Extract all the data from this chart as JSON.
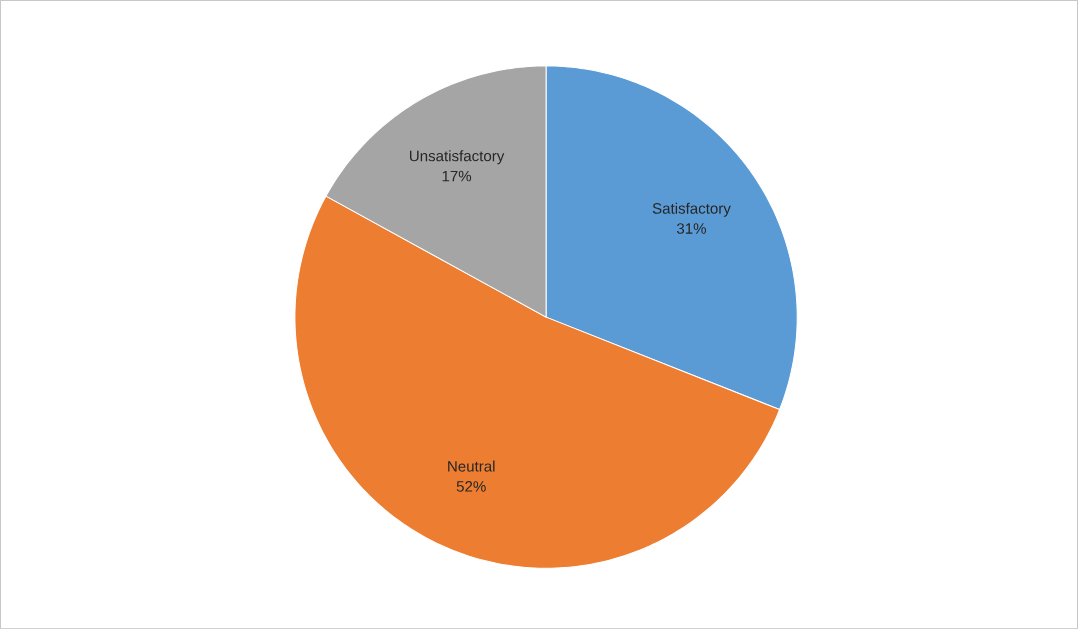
{
  "chart_data": {
    "type": "pie",
    "categories": [
      "Satisfactory",
      "Neutral",
      "Unsatisfactory"
    ],
    "values": [
      31,
      52,
      17
    ],
    "colors": [
      "#5b9bd5",
      "#ed7d31",
      "#a5a5a5"
    ],
    "value_labels": [
      "31%",
      "52%",
      "17%"
    ]
  }
}
